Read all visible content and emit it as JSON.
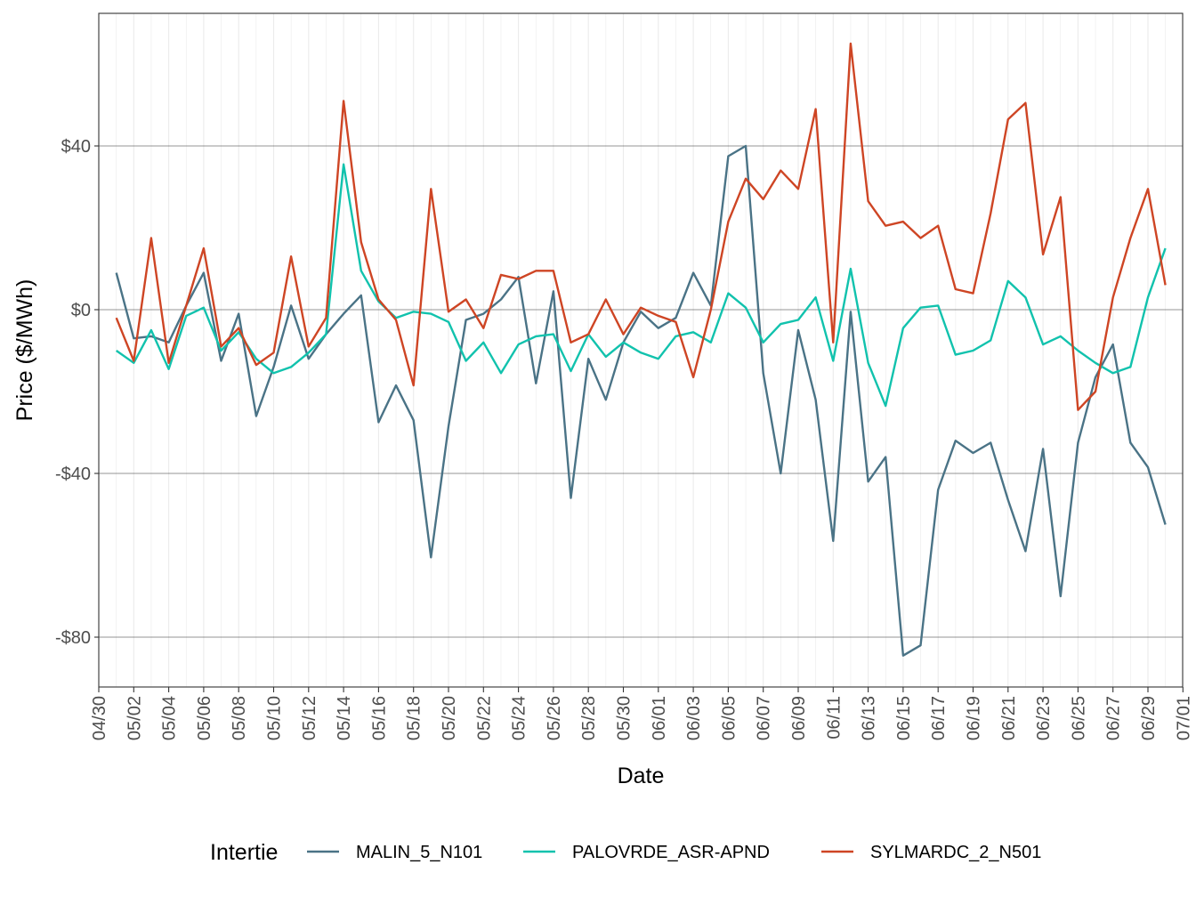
{
  "chart_data": {
    "type": "line",
    "xlabel": "Date",
    "ylabel": "Price ($/MWh)",
    "legend_title": "Intertie",
    "legend_position": "bottom",
    "grid": true,
    "x_start": "04/30",
    "x_tick_labels": [
      "04/30",
      "05/02",
      "05/04",
      "05/06",
      "05/08",
      "05/10",
      "05/12",
      "05/14",
      "05/16",
      "05/18",
      "05/20",
      "05/22",
      "05/24",
      "05/26",
      "05/28",
      "05/30",
      "06/01",
      "06/03",
      "06/05",
      "06/07",
      "06/09",
      "06/11",
      "06/13",
      "06/15",
      "06/17",
      "06/19",
      "06/21",
      "06/23",
      "06/25",
      "06/27",
      "06/29",
      "07/01"
    ],
    "y_tick_labels": [
      "-$80",
      "-$40",
      "$0",
      "$40"
    ],
    "y_ticks": [
      -80,
      -40,
      0,
      40
    ],
    "ylim": [
      -92,
      72
    ],
    "x": [
      "05/01",
      "05/02",
      "05/03",
      "05/04",
      "05/05",
      "05/06",
      "05/07",
      "05/08",
      "05/09",
      "05/10",
      "05/11",
      "05/12",
      "05/13",
      "05/14",
      "05/15",
      "05/16",
      "05/17",
      "05/18",
      "05/19",
      "05/20",
      "05/21",
      "05/22",
      "05/23",
      "05/24",
      "05/25",
      "05/26",
      "05/27",
      "05/28",
      "05/29",
      "05/30",
      "05/31",
      "06/01",
      "06/02",
      "06/03",
      "06/04",
      "06/05",
      "06/06",
      "06/07",
      "06/08",
      "06/09",
      "06/10",
      "06/11",
      "06/12",
      "06/13",
      "06/14",
      "06/15",
      "06/16",
      "06/17",
      "06/18",
      "06/19",
      "06/20",
      "06/21",
      "06/22",
      "06/23",
      "06/24",
      "06/25",
      "06/26",
      "06/27",
      "06/28",
      "06/29",
      "06/30"
    ],
    "series": [
      {
        "name": "MALIN_5_N101",
        "color": "#4a7386",
        "values": [
          9,
          -7,
          -6.5,
          -8,
          1,
          9,
          -12.5,
          -1,
          -26,
          -14,
          1,
          -12,
          -6,
          -1,
          3.5,
          -27.5,
          -18.5,
          -27,
          -60.5,
          -28.5,
          -2.5,
          -1,
          2.5,
          8,
          -18,
          4.5,
          -46,
          -12,
          -22,
          -8,
          -0.5,
          -4.5,
          -2,
          9,
          1,
          37.5,
          40,
          -15.5,
          -40,
          -5,
          -22,
          -56.5,
          -0.5,
          -42,
          -36,
          -84.5,
          -82,
          -44,
          -32,
          -35,
          -32.5,
          -46.5,
          -59,
          -34,
          -70,
          -32.5,
          -16.5,
          -8.5,
          -32.5,
          -38.5,
          -52.5
        ]
      },
      {
        "name": "PALOVRDE_ASR-APND",
        "color": "#11c2ad",
        "values": [
          -10,
          -13,
          -5,
          -14.5,
          -1.5,
          0.5,
          -10,
          -5.5,
          -12,
          -15.5,
          -14,
          -10.5,
          -6,
          35.5,
          9.5,
          2,
          -2,
          -0.5,
          -1,
          -3,
          -12.5,
          -8,
          -15.5,
          -8.5,
          -6.5,
          -6,
          -15,
          -6,
          -11.5,
          -8,
          -10.5,
          -12,
          -6.5,
          -5.5,
          -8,
          4,
          0.5,
          -8,
          -3.5,
          -2.5,
          3,
          -12.5,
          10,
          -13,
          -23.5,
          -4.5,
          0.5,
          1,
          -11,
          -10,
          -7.5,
          7,
          3,
          -8.5,
          -6.5,
          -10,
          -13,
          -15.5,
          -14,
          3,
          15
        ]
      },
      {
        "name": "SYLMARDC_2_N501",
        "color": "#ce4524",
        "values": [
          -2,
          -12.5,
          17.5,
          -13,
          1,
          15,
          -9,
          -4.5,
          -13.5,
          -10.5,
          13,
          -9,
          -2,
          51,
          16.5,
          2.5,
          -2.5,
          -18.5,
          29.5,
          -0.5,
          2.5,
          -4.5,
          8.5,
          7.5,
          9.5,
          9.5,
          -8,
          -6,
          2.5,
          -6,
          0.5,
          -1.5,
          -3,
          -16.5,
          0,
          21.5,
          32,
          27,
          34,
          29.5,
          49,
          -8,
          65,
          26.5,
          20.5,
          21.5,
          17.5,
          20.5,
          5,
          4,
          23.5,
          46.5,
          50.5,
          13.5,
          27.5,
          -24.5,
          -20,
          3,
          17.5,
          29.5,
          6
        ]
      }
    ]
  }
}
